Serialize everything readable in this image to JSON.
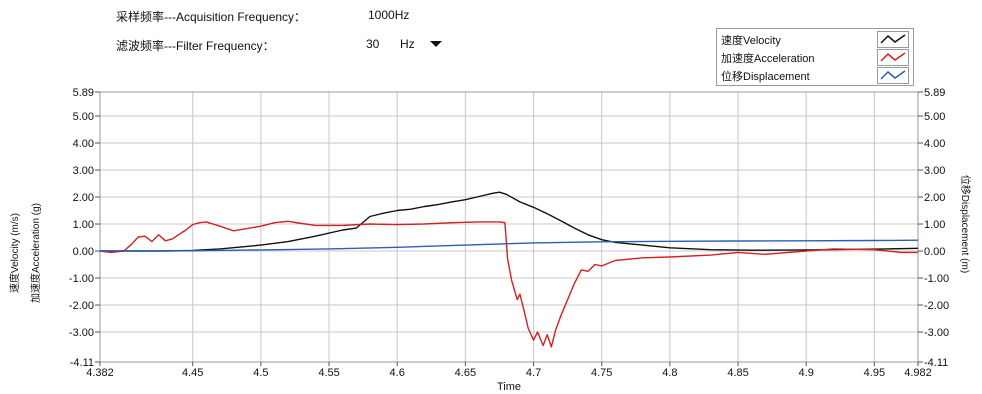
{
  "controls": {
    "sampling_label": "采样频率---Acquisition Frequency：",
    "sampling_value": "1000Hz",
    "filter_label": "滤波频率---Filter Frequency：",
    "filter_value": "30",
    "filter_unit": "Hz"
  },
  "colors": {
    "velocity": "#111111",
    "acceleration": "#d42020",
    "displacement": "#2a5fb0",
    "grid": "#c8c8c8",
    "frame": "#9a9a9a"
  },
  "chart_data": {
    "type": "line",
    "title": "",
    "xlabel": "Time",
    "ylabel_left": [
      "速度Velocity (m/s)",
      "加速度Acceleration (g)"
    ],
    "ylabel_right": "位移Displacement (m)",
    "xlim": [
      4.382,
      4.982
    ],
    "ylim": [
      -4.11,
      5.89
    ],
    "x_ticks": [
      "4.382",
      "4.45",
      "4.5",
      "4.55",
      "4.6",
      "4.65",
      "4.7",
      "4.75",
      "4.8",
      "4.85",
      "4.9",
      "4.95",
      "4.982"
    ],
    "y_ticks": [
      "5.89",
      "5.00",
      "4.00",
      "3.00",
      "2.00",
      "1.00",
      "0.00",
      "-1.00",
      "-2.00",
      "-3.00",
      "-4.11"
    ],
    "grid": true,
    "legend_position": "top-right",
    "series": [
      {
        "name": "速度Velocity",
        "x": [
          4.382,
          4.4,
          4.43,
          4.45,
          4.47,
          4.5,
          4.52,
          4.54,
          4.56,
          4.57,
          4.58,
          4.59,
          4.6,
          4.61,
          4.62,
          4.63,
          4.64,
          4.65,
          4.66,
          4.67,
          4.675,
          4.68,
          4.69,
          4.7,
          4.71,
          4.72,
          4.73,
          4.74,
          4.75,
          4.76,
          4.78,
          4.8,
          4.83,
          4.86,
          4.9,
          4.93,
          4.96,
          4.982
        ],
        "y": [
          0.0,
          0.0,
          0.0,
          0.02,
          0.08,
          0.22,
          0.35,
          0.55,
          0.78,
          0.85,
          1.28,
          1.4,
          1.5,
          1.55,
          1.65,
          1.72,
          1.82,
          1.9,
          2.02,
          2.14,
          2.18,
          2.1,
          1.82,
          1.62,
          1.38,
          1.12,
          0.85,
          0.6,
          0.42,
          0.32,
          0.22,
          0.12,
          0.05,
          0.03,
          0.04,
          0.06,
          0.08,
          0.1
        ]
      },
      {
        "name": "加速度Acceleration",
        "x": [
          4.382,
          4.39,
          4.395,
          4.4,
          4.405,
          4.41,
          4.415,
          4.42,
          4.425,
          4.43,
          4.435,
          4.44,
          4.445,
          4.45,
          4.455,
          4.46,
          4.47,
          4.48,
          4.5,
          4.51,
          4.52,
          4.53,
          4.54,
          4.56,
          4.58,
          4.6,
          4.62,
          4.64,
          4.66,
          4.675,
          4.679,
          4.681,
          4.684,
          4.688,
          4.69,
          4.693,
          4.696,
          4.7,
          4.703,
          4.707,
          4.71,
          4.713,
          4.716,
          4.72,
          4.725,
          4.73,
          4.735,
          4.74,
          4.745,
          4.75,
          4.76,
          4.78,
          4.8,
          4.83,
          4.85,
          4.87,
          4.9,
          4.92,
          4.95,
          4.97,
          4.982
        ],
        "y": [
          0.0,
          -0.05,
          -0.03,
          0.02,
          0.25,
          0.52,
          0.55,
          0.35,
          0.6,
          0.38,
          0.45,
          0.62,
          0.78,
          0.98,
          1.05,
          1.08,
          0.92,
          0.75,
          0.92,
          1.05,
          1.1,
          1.02,
          0.95,
          0.95,
          1.0,
          0.98,
          1.0,
          1.05,
          1.08,
          1.08,
          1.05,
          -0.3,
          -1.1,
          -1.8,
          -1.6,
          -2.2,
          -2.85,
          -3.3,
          -3.0,
          -3.5,
          -3.1,
          -3.55,
          -2.95,
          -2.4,
          -1.8,
          -1.2,
          -0.7,
          -0.75,
          -0.5,
          -0.55,
          -0.35,
          -0.25,
          -0.22,
          -0.15,
          -0.05,
          -0.12,
          0.0,
          0.08,
          0.05,
          -0.05,
          -0.05
        ]
      },
      {
        "name": "位移Displacement",
        "x": [
          4.382,
          4.45,
          4.5,
          4.55,
          4.6,
          4.65,
          4.7,
          4.75,
          4.8,
          4.85,
          4.9,
          4.95,
          4.982
        ],
        "y": [
          0.0,
          0.01,
          0.04,
          0.08,
          0.14,
          0.22,
          0.3,
          0.34,
          0.36,
          0.37,
          0.38,
          0.39,
          0.4
        ]
      }
    ]
  }
}
